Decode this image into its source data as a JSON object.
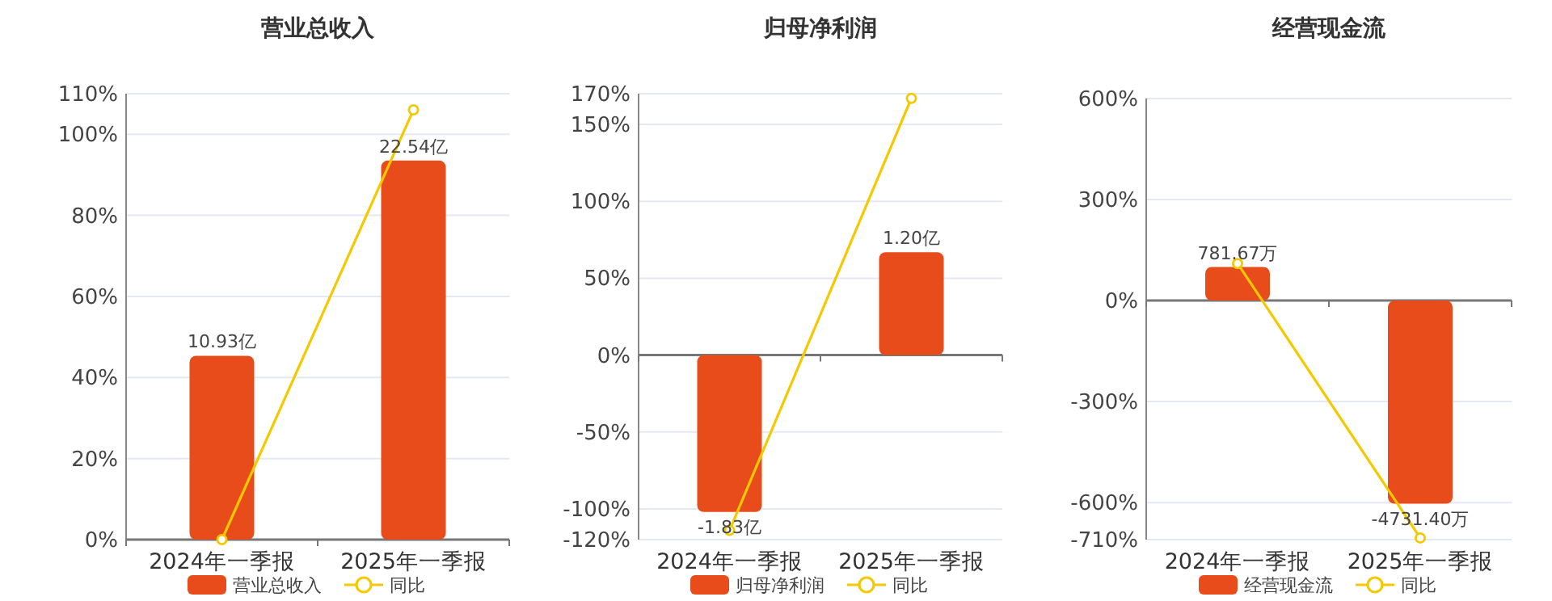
{
  "chart_data": [
    {
      "type": "bar",
      "title": "营业总收入",
      "categories": [
        "2024年一季报",
        "2025年一季报"
      ],
      "ylim": [
        0,
        110
      ],
      "yticks": [
        {
          "value": 0,
          "label": "0%"
        },
        {
          "value": 20,
          "label": "20%"
        },
        {
          "value": 40,
          "label": "40%"
        },
        {
          "value": 60,
          "label": "60%"
        },
        {
          "value": 80,
          "label": "80%"
        },
        {
          "value": 100,
          "label": "100%"
        },
        {
          "value": 110,
          "label": "110%"
        }
      ],
      "grid": "y",
      "legend": "bottom",
      "series": [
        {
          "name": "营业总收入",
          "color": "#e84c1b",
          "axis": "y2",
          "values": [
            10.93,
            22.54
          ],
          "value_labels": [
            "10.93亿",
            "22.54亿"
          ]
        },
        {
          "name": "同比",
          "type": "line",
          "color": "#f5c800",
          "marker": "circle",
          "values": [
            0,
            106
          ]
        }
      ]
    },
    {
      "type": "bar",
      "title": "归母净利润",
      "categories": [
        "2024年一季报",
        "2025年一季报"
      ],
      "ylim": [
        -120,
        170
      ],
      "yticks": [
        {
          "value": -120,
          "label": "-120%"
        },
        {
          "value": -100,
          "label": "-100%"
        },
        {
          "value": -50,
          "label": "-50%"
        },
        {
          "value": 0,
          "label": "0%"
        },
        {
          "value": 50,
          "label": "50%"
        },
        {
          "value": 100,
          "label": "100%"
        },
        {
          "value": 150,
          "label": "150%"
        },
        {
          "value": 170,
          "label": "170%"
        }
      ],
      "grid": "y",
      "legend": "bottom",
      "series": [
        {
          "name": "归母净利润",
          "color": "#e84c1b",
          "axis": "y2",
          "values": [
            -1.83,
            1.2
          ],
          "value_labels": [
            "-1.83亿",
            "1.20亿"
          ]
        },
        {
          "name": "同比",
          "type": "line",
          "color": "#f5c800",
          "marker": "circle",
          "values": [
            -114,
            167
          ]
        }
      ]
    },
    {
      "type": "bar",
      "title": "经营现金流",
      "categories": [
        "2024年一季报",
        "2025年一季报"
      ],
      "ylim": [
        -710,
        600
      ],
      "yticks": [
        {
          "value": -710,
          "label": "-710%"
        },
        {
          "value": -600,
          "label": "-600%"
        },
        {
          "value": -300,
          "label": "-300%"
        },
        {
          "value": 0,
          "label": "0%"
        },
        {
          "value": 300,
          "label": "300%"
        },
        {
          "value": 600,
          "label": "600%"
        }
      ],
      "grid": "y",
      "legend": "bottom",
      "series": [
        {
          "name": "经营现金流",
          "color": "#e84c1b",
          "axis": "y2",
          "values": [
            781.67,
            -4731.4
          ],
          "value_labels": [
            "781.67万",
            "-4731.40万"
          ]
        },
        {
          "name": "同比",
          "type": "line",
          "color": "#f5c800",
          "marker": "circle",
          "values": [
            110,
            -705
          ]
        }
      ]
    }
  ]
}
